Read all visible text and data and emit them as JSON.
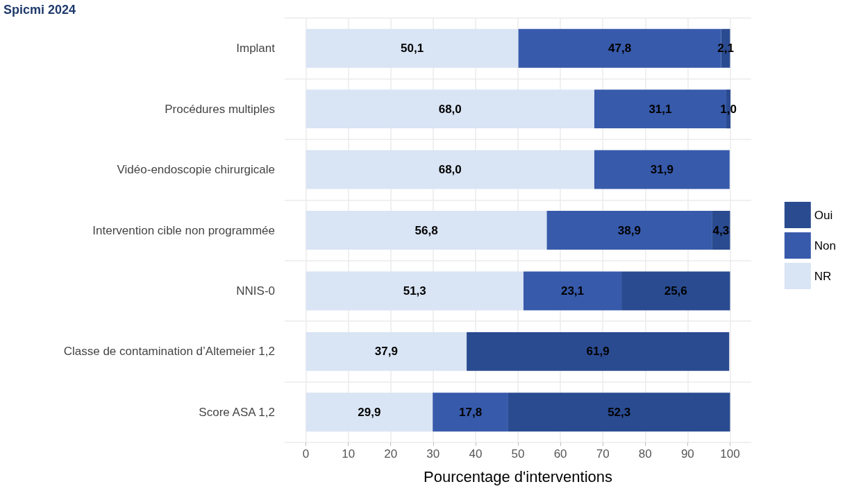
{
  "chart_data": {
    "type": "bar",
    "orientation": "horizontal",
    "stacked": true,
    "title": "Spicmi 2024",
    "xlabel": "Pourcentage d'interventions",
    "categories": [
      "Implant",
      "Procédures multiples",
      "Vidéo-endoscopie chirurgicale",
      "Intervention cible non programmée",
      "NNIS-0",
      "Classe de contamination d’Altemeier 1,2",
      "Score ASA 1,2"
    ],
    "series": [
      {
        "name": "NR",
        "color": "#d9e4f4",
        "values": [
          50.1,
          68.0,
          68.0,
          56.8,
          51.3,
          37.9,
          29.9
        ],
        "value_labels": [
          "50,1",
          "68,0",
          "68,0",
          "56,8",
          "51,3",
          "37,9",
          "29,9"
        ]
      },
      {
        "name": "Non",
        "color": "#375aab",
        "values": [
          47.8,
          31.1,
          31.9,
          38.9,
          23.1,
          null,
          17.8
        ],
        "value_labels": [
          "47,8",
          "31,1",
          "31,9",
          "38,9",
          "23,1",
          null,
          "17,8"
        ]
      },
      {
        "name": "Oui",
        "color": "#2a4b90",
        "values": [
          2.1,
          1.0,
          null,
          4.3,
          25.6,
          61.9,
          52.3
        ],
        "value_labels": [
          "2,1",
          "1,0",
          null,
          "4,3",
          "25,6",
          "61,9",
          "52,3"
        ]
      }
    ],
    "xlim": [
      -5,
      105
    ],
    "xticks": [
      0,
      10,
      20,
      30,
      40,
      50,
      60,
      70,
      80,
      90,
      100
    ],
    "grid": true,
    "legend": "right"
  }
}
